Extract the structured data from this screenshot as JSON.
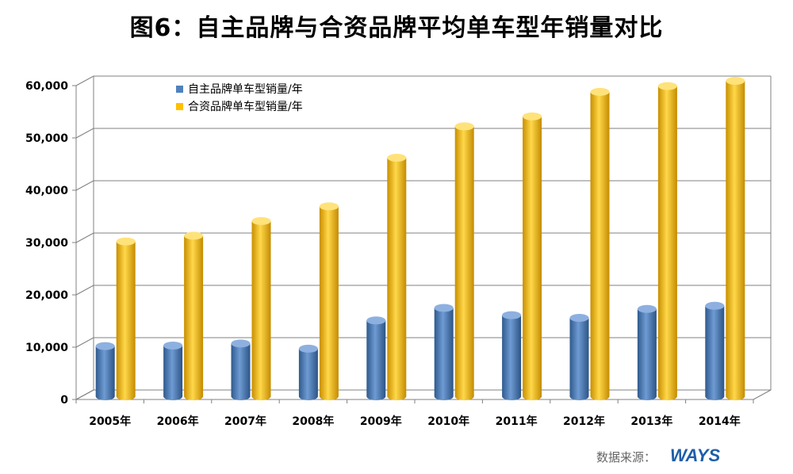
{
  "chart_data": {
    "type": "bar",
    "title": "图6：自主品牌与合资品牌平均单车型年销量对比",
    "categories": [
      "2005年",
      "2006年",
      "2007年",
      "2008年",
      "2009年",
      "2010年",
      "2011年",
      "2012年",
      "2013年",
      "2014年"
    ],
    "series": [
      {
        "name": "自主品牌单车型销量/年",
        "color": "#4f81bd",
        "values": [
          9300,
          9400,
          9800,
          8800,
          14200,
          16600,
          15200,
          14700,
          16400,
          17000
        ]
      },
      {
        "name": "合资品牌单车型销量/年",
        "color": "#ffc000",
        "values": [
          29300,
          30400,
          33200,
          36000,
          45300,
          51300,
          53200,
          57900,
          59000,
          60000
        ]
      }
    ],
    "ylim": [
      0,
      60000
    ],
    "yticks": [
      "0",
      "10,000",
      "20,000",
      "30,000",
      "40,000",
      "50,000",
      "60,000"
    ],
    "grid": true,
    "legend_position": "top-left"
  },
  "source_label": "数据来源：",
  "source_logo": "WAYS"
}
